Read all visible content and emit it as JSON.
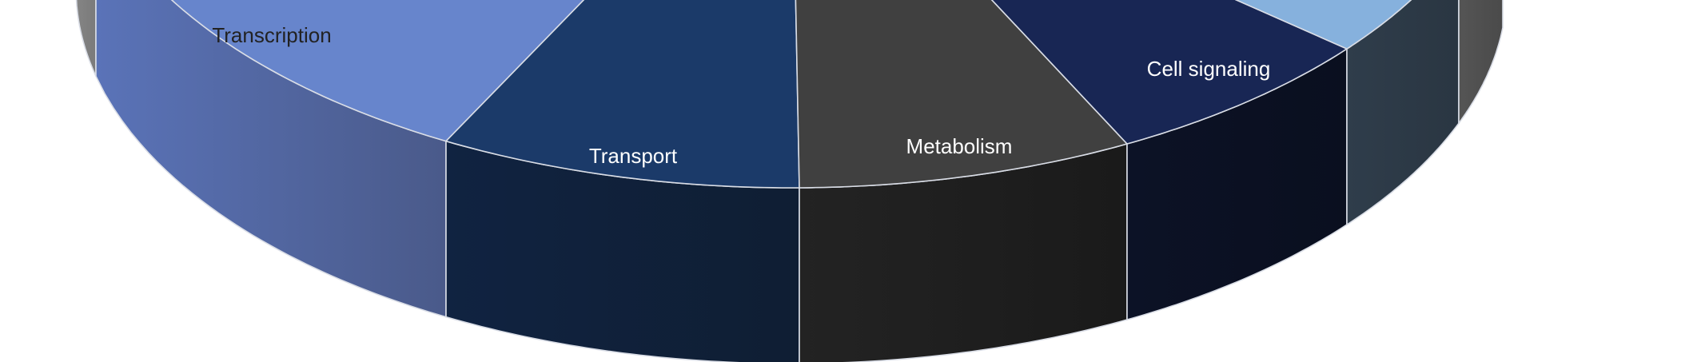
{
  "chart_data": {
    "type": "pie",
    "style": "3d",
    "title": "",
    "slices": [
      {
        "label": "",
        "top_color": "#a8a8a8",
        "side_color": "#8f8f8f",
        "side_color_dark": "#7a7a7a"
      },
      {
        "label": "Transcription",
        "top_color": "#6785cc",
        "side_color": "#5a73b8",
        "side_color_dark": "#4a5a8a",
        "label_color": "#222222"
      },
      {
        "label": "Transport",
        "top_color": "#1b3a69",
        "side_color": "#102341",
        "side_color_dark": "#0f1e33",
        "label_color": "#ffffff"
      },
      {
        "label": "Metabolism",
        "top_color": "#404040",
        "side_color": "#232323",
        "side_color_dark": "#1a1a1a",
        "label_color": "#ffffff"
      },
      {
        "label": "Cell signaling",
        "top_color": "#182654",
        "side_color": "#0c1226",
        "side_color_dark": "#0a0f1f",
        "label_color": "#ffffff"
      },
      {
        "label": "",
        "top_color": "#86b1dd",
        "side_color": "#2f3d4b",
        "side_color_dark": "#2a3642"
      },
      {
        "label": "",
        "top_color": "#6a6a6a",
        "side_color": "#555555",
        "side_color_dark": "#4a4a4a"
      }
    ]
  }
}
